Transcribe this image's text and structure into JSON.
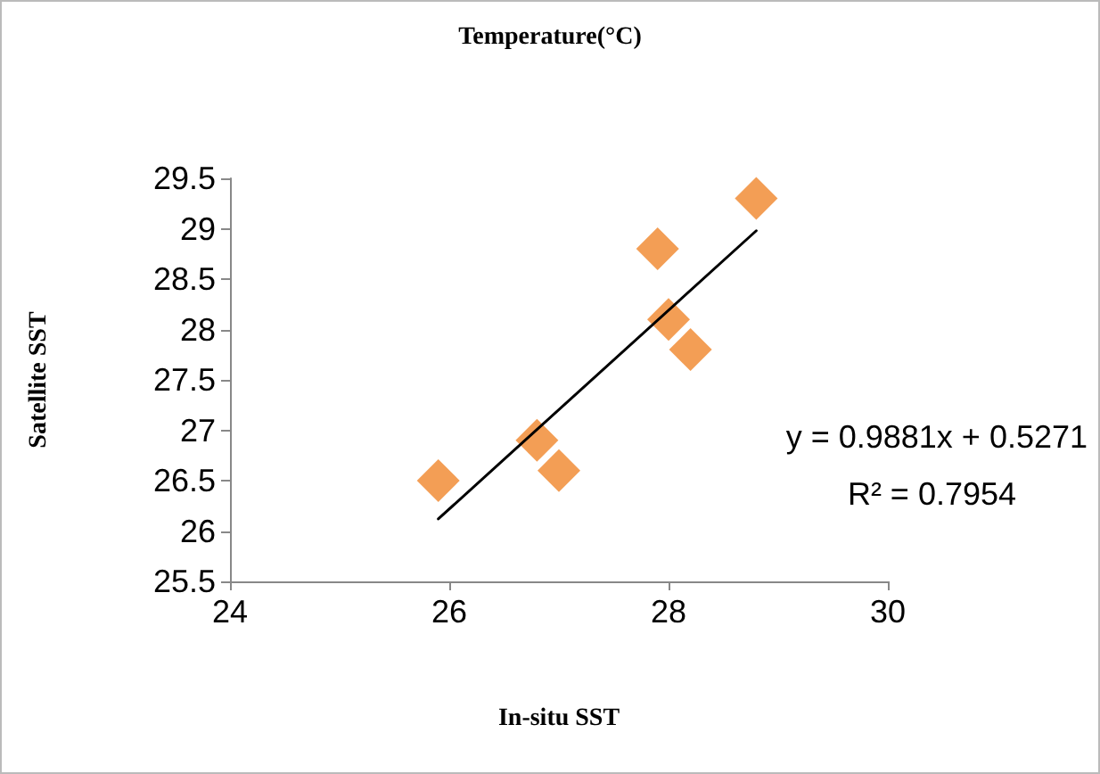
{
  "chart_data": {
    "type": "scatter",
    "title": "Temperature(°C)",
    "xlabel": "In-situ SST",
    "ylabel": "Satellite SST",
    "x": [
      25.9,
      26.8,
      27.0,
      27.9,
      28.0,
      28.2,
      28.8
    ],
    "series": [
      {
        "color": "#f0862a",
        "marker": "diamond",
        "values": [
          26.5,
          26.9,
          26.6,
          28.8,
          28.1,
          27.8,
          29.3
        ]
      },
      {
        "type": "line",
        "color": "#000000",
        "marker": "none",
        "line_style": "solid",
        "x": [
          25.9,
          28.8
        ],
        "values": [
          26.12,
          28.98
        ]
      }
    ],
    "annotations": [
      "y = 0.9881x + 0.5271",
      "R² = 0.7954"
    ],
    "xlim": [
      24,
      30
    ],
    "xticks": [
      24,
      26,
      28,
      30
    ],
    "ylim": [
      25.5,
      29.5
    ],
    "yticks": [
      25.5,
      26,
      26.5,
      27,
      27.5,
      28,
      28.5,
      29,
      29.5
    ],
    "grid": false
  }
}
